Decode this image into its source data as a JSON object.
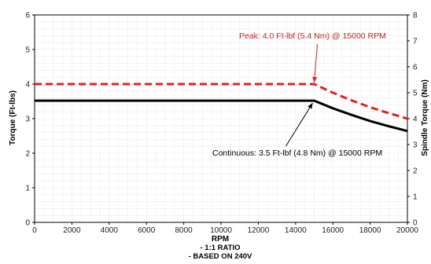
{
  "chart_data": {
    "type": "line",
    "xlabel": "RPM",
    "xlabel_notes": [
      "- 1:1 RATIO",
      "- BASED ON 240V"
    ],
    "ylabel": "Torque (Ft-lbs)",
    "y2label": "Spindle Torque (Nm)",
    "xlim": [
      0,
      20000
    ],
    "ylim": [
      0,
      6
    ],
    "y2lim": [
      0,
      8
    ],
    "x_ticks": [
      0,
      2000,
      4000,
      6000,
      8000,
      10000,
      12000,
      14000,
      16000,
      18000,
      20000
    ],
    "y_ticks": [
      0,
      1,
      2,
      3,
      4,
      5,
      6
    ],
    "y2_ticks": [
      0,
      1,
      2,
      3,
      4,
      5,
      6,
      7,
      8
    ],
    "grid": true,
    "series": [
      {
        "name": "Peak",
        "color": "#e8201c",
        "style": "dashed",
        "x": [
          0,
          15000,
          16000,
          17000,
          18000,
          19000,
          20000
        ],
        "y": [
          4.0,
          4.0,
          3.75,
          3.53,
          3.33,
          3.16,
          3.0
        ]
      },
      {
        "name": "Continuous",
        "color": "#000000",
        "style": "solid",
        "x": [
          0,
          15000,
          16000,
          17000,
          18000,
          19000,
          20000
        ],
        "y": [
          3.52,
          3.52,
          3.3,
          3.11,
          2.93,
          2.78,
          2.64
        ]
      }
    ],
    "annotations": [
      {
        "text": "Peak: 4.0 Ft-lbf (5.4 Nm) @ 15000 RPM",
        "color": "#e8201c"
      },
      {
        "text": "Continuous: 3.5 Ft-lbf (4.8 Nm) @ 15000 RPM",
        "color": "#000000"
      }
    ]
  }
}
